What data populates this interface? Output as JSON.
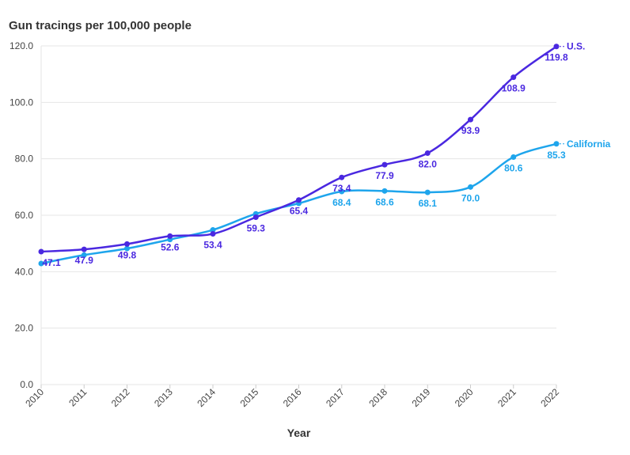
{
  "chart_data": {
    "type": "line",
    "title": "Gun tracings per 100,000 people",
    "xlabel": "Year",
    "ylabel": "",
    "ylim": [
      0,
      120
    ],
    "yticks": [
      "0.0",
      "20.0",
      "40.0",
      "60.0",
      "80.0",
      "100.0",
      "120.0"
    ],
    "x": [
      "2010",
      "2011",
      "2012",
      "2013",
      "2014",
      "2015",
      "2016",
      "2017",
      "2018",
      "2019",
      "2020",
      "2021",
      "2022"
    ],
    "grid": true,
    "series": [
      {
        "name": "U.S.",
        "color": "#4a28e0",
        "values": [
          47.1,
          47.9,
          49.8,
          52.6,
          53.4,
          59.3,
          65.4,
          73.4,
          77.9,
          82.0,
          93.9,
          108.9,
          119.8
        ],
        "labels": [
          "47.1",
          "47.9",
          "49.8",
          "52.6",
          "53.4",
          "59.3",
          "65.4",
          "73.4",
          "77.9",
          "82.0",
          "93.9",
          "108.9",
          "119.8"
        ]
      },
      {
        "name": "California",
        "color": "#1ea5ec",
        "values": [
          42.9,
          45.9,
          48.2,
          51.4,
          54.8,
          60.5,
          64.2,
          68.4,
          68.6,
          68.1,
          70.0,
          80.6,
          85.3
        ],
        "labels": [
          null,
          null,
          null,
          null,
          null,
          null,
          null,
          "68.4",
          "68.6",
          "68.1",
          "70.0",
          "80.6",
          "85.3"
        ]
      }
    ]
  }
}
